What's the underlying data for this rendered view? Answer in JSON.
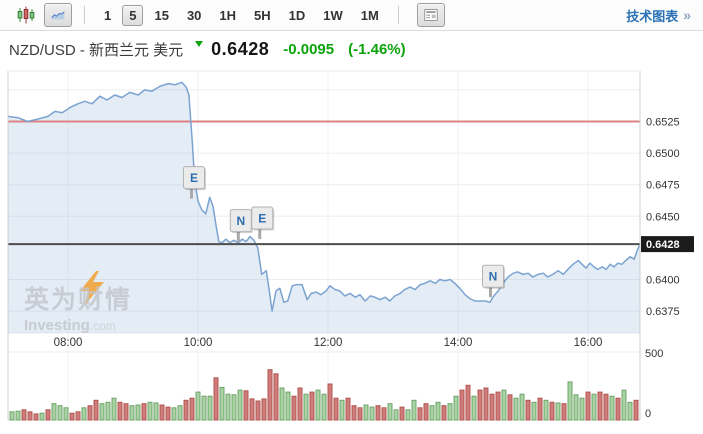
{
  "toolbar": {
    "timeframes": [
      "1",
      "5",
      "15",
      "30",
      "1H",
      "5H",
      "1D",
      "1W",
      "1M"
    ],
    "active_timeframe": "5",
    "tech_chart_label": "技术图表",
    "tech_chart_arrows": "»",
    "link_color": "#2a72b5"
  },
  "header": {
    "symbol": "NZD/USD - 新西兰元 美元",
    "price": "0.6428",
    "change": "-0.0095",
    "change_pct": "(-1.46%)",
    "change_color": "#0ca30c"
  },
  "watermark": {
    "cn": "英为财情",
    "brand": "Investing",
    "tld": ".com"
  },
  "chart_data": {
    "type": "line",
    "symbol": "NZD/USD",
    "interval_minutes": 5,
    "title": "NZD/USD 5-minute chart with volume",
    "x_axis": {
      "labels": [
        "08:00",
        "10:00",
        "12:00",
        "14:00",
        "16:00"
      ],
      "hours": [
        8,
        10,
        12,
        14,
        16
      ],
      "range_hours": [
        7.08,
        16.8
      ]
    },
    "y_axis": {
      "tick_values": [
        0.6525,
        0.65,
        0.6475,
        0.645,
        0.64,
        0.6375
      ],
      "grid_values": [
        0.655,
        0.65,
        0.6475,
        0.645,
        0.64,
        0.6375
      ],
      "range": [
        0.6368,
        0.6567
      ]
    },
    "grid": true,
    "legend": "none",
    "last_price": 0.6428,
    "resistance_line": 0.6525,
    "annotations": [
      {
        "label": "E",
        "hour": 9.9,
        "price": 0.6464
      },
      {
        "label": "N",
        "hour": 10.62,
        "price": 0.643
      },
      {
        "label": "E",
        "hour": 10.95,
        "price": 0.6432
      },
      {
        "label": "N",
        "hour": 14.5,
        "price": 0.6386
      }
    ],
    "price_series": [
      [
        7.08,
        0.6529
      ],
      [
        7.23,
        0.6528
      ],
      [
        7.38,
        0.6525
      ],
      [
        7.54,
        0.6527
      ],
      [
        7.69,
        0.6529
      ],
      [
        7.8,
        0.6533
      ],
      [
        7.91,
        0.6532
      ],
      [
        8.03,
        0.6536
      ],
      [
        8.15,
        0.6539
      ],
      [
        8.26,
        0.6541
      ],
      [
        8.37,
        0.6539
      ],
      [
        8.49,
        0.6545
      ],
      [
        8.6,
        0.6542
      ],
      [
        8.72,
        0.6546
      ],
      [
        8.83,
        0.6544
      ],
      [
        8.95,
        0.6548
      ],
      [
        9.08,
        0.6546
      ],
      [
        9.18,
        0.655
      ],
      [
        9.29,
        0.6549
      ],
      [
        9.42,
        0.6553
      ],
      [
        9.54,
        0.6555
      ],
      [
        9.65,
        0.6554
      ],
      [
        9.75,
        0.6556
      ],
      [
        9.82,
        0.6552
      ],
      [
        9.86,
        0.6546
      ],
      [
        9.91,
        0.651
      ],
      [
        9.95,
        0.6478
      ],
      [
        10.0,
        0.6462
      ],
      [
        10.06,
        0.6455
      ],
      [
        10.12,
        0.6452
      ],
      [
        10.18,
        0.6465
      ],
      [
        10.23,
        0.6458
      ],
      [
        10.28,
        0.6442
      ],
      [
        10.32,
        0.643
      ],
      [
        10.37,
        0.6429
      ],
      [
        10.43,
        0.6432
      ],
      [
        10.49,
        0.6429
      ],
      [
        10.55,
        0.6431
      ],
      [
        10.62,
        0.6429
      ],
      [
        10.68,
        0.6432
      ],
      [
        10.74,
        0.643
      ],
      [
        10.8,
        0.6434
      ],
      [
        10.86,
        0.6431
      ],
      [
        10.92,
        0.6425
      ],
      [
        10.98,
        0.6404
      ],
      [
        11.05,
        0.6407
      ],
      [
        11.09,
        0.6393
      ],
      [
        11.14,
        0.6375
      ],
      [
        11.2,
        0.6391
      ],
      [
        11.26,
        0.6393
      ],
      [
        11.32,
        0.6382
      ],
      [
        11.38,
        0.6383
      ],
      [
        11.45,
        0.6395
      ],
      [
        11.52,
        0.6396
      ],
      [
        11.6,
        0.6396
      ],
      [
        11.68,
        0.6384
      ],
      [
        11.74,
        0.6389
      ],
      [
        11.82,
        0.639
      ],
      [
        11.89,
        0.6388
      ],
      [
        11.97,
        0.6391
      ],
      [
        12.03,
        0.6395
      ],
      [
        12.11,
        0.6392
      ],
      [
        12.18,
        0.6391
      ],
      [
        12.26,
        0.6387
      ],
      [
        12.34,
        0.6389
      ],
      [
        12.42,
        0.6386
      ],
      [
        12.49,
        0.6388
      ],
      [
        12.57,
        0.6383
      ],
      [
        12.65,
        0.6387
      ],
      [
        12.72,
        0.6386
      ],
      [
        12.8,
        0.6384
      ],
      [
        12.88,
        0.6386
      ],
      [
        12.95,
        0.6383
      ],
      [
        13.03,
        0.6387
      ],
      [
        13.11,
        0.6389
      ],
      [
        13.18,
        0.6392
      ],
      [
        13.26,
        0.6394
      ],
      [
        13.34,
        0.6392
      ],
      [
        13.42,
        0.6396
      ],
      [
        13.49,
        0.6397
      ],
      [
        13.57,
        0.6399
      ],
      [
        13.65,
        0.6397
      ],
      [
        13.72,
        0.64
      ],
      [
        13.8,
        0.6399
      ],
      [
        13.88,
        0.64
      ],
      [
        13.95,
        0.6397
      ],
      [
        14.03,
        0.6393
      ],
      [
        14.11,
        0.6388
      ],
      [
        14.18,
        0.6385
      ],
      [
        14.26,
        0.6383
      ],
      [
        14.34,
        0.6383
      ],
      [
        14.42,
        0.6383
      ],
      [
        14.49,
        0.6382
      ],
      [
        14.55,
        0.6387
      ],
      [
        14.62,
        0.6391
      ],
      [
        14.69,
        0.6397
      ],
      [
        14.77,
        0.6402
      ],
      [
        14.85,
        0.6405
      ],
      [
        14.92,
        0.6406
      ],
      [
        15.0,
        0.6404
      ],
      [
        15.08,
        0.6405
      ],
      [
        15.15,
        0.6402
      ],
      [
        15.23,
        0.6404
      ],
      [
        15.31,
        0.6405
      ],
      [
        15.38,
        0.6402
      ],
      [
        15.46,
        0.6404
      ],
      [
        15.54,
        0.6407
      ],
      [
        15.62,
        0.6404
      ],
      [
        15.69,
        0.6408
      ],
      [
        15.77,
        0.6412
      ],
      [
        15.85,
        0.6415
      ],
      [
        15.91,
        0.6412
      ],
      [
        15.97,
        0.6409
      ],
      [
        16.03,
        0.6413
      ],
      [
        16.09,
        0.641
      ],
      [
        16.15,
        0.6408
      ],
      [
        16.22,
        0.641
      ],
      [
        16.28,
        0.6408
      ],
      [
        16.34,
        0.6412
      ],
      [
        16.4,
        0.641
      ],
      [
        16.46,
        0.6413
      ],
      [
        16.52,
        0.6412
      ],
      [
        16.58,
        0.6415
      ],
      [
        16.65,
        0.6418
      ],
      [
        16.71,
        0.6416
      ],
      [
        16.75,
        0.6422
      ],
      [
        16.8,
        0.6428
      ]
    ],
    "volume": {
      "ylim": [
        0,
        500
      ],
      "ticks": [
        500,
        0
      ],
      "bars": [
        [
          60,
          1
        ],
        [
          65,
          1
        ],
        [
          75,
          0
        ],
        [
          60,
          0
        ],
        [
          45,
          0
        ],
        [
          50,
          1
        ],
        [
          75,
          0
        ],
        [
          120,
          1
        ],
        [
          105,
          1
        ],
        [
          90,
          1
        ],
        [
          50,
          0
        ],
        [
          60,
          0
        ],
        [
          90,
          1
        ],
        [
          105,
          0
        ],
        [
          145,
          0
        ],
        [
          120,
          1
        ],
        [
          130,
          1
        ],
        [
          160,
          1
        ],
        [
          130,
          0
        ],
        [
          120,
          0
        ],
        [
          105,
          1
        ],
        [
          110,
          1
        ],
        [
          120,
          0
        ],
        [
          130,
          1
        ],
        [
          125,
          1
        ],
        [
          110,
          0
        ],
        [
          95,
          0
        ],
        [
          90,
          1
        ],
        [
          105,
          1
        ],
        [
          145,
          0
        ],
        [
          160,
          0
        ],
        [
          205,
          1
        ],
        [
          175,
          1
        ],
        [
          175,
          1
        ],
        [
          310,
          0
        ],
        [
          240,
          1
        ],
        [
          190,
          1
        ],
        [
          185,
          1
        ],
        [
          220,
          1
        ],
        [
          215,
          0
        ],
        [
          155,
          0
        ],
        [
          140,
          0
        ],
        [
          155,
          0
        ],
        [
          370,
          0
        ],
        [
          340,
          0
        ],
        [
          235,
          1
        ],
        [
          205,
          1
        ],
        [
          175,
          0
        ],
        [
          235,
          0
        ],
        [
          190,
          1
        ],
        [
          205,
          0
        ],
        [
          220,
          1
        ],
        [
          190,
          1
        ],
        [
          265,
          0
        ],
        [
          160,
          0
        ],
        [
          145,
          1
        ],
        [
          160,
          0
        ],
        [
          105,
          0
        ],
        [
          90,
          0
        ],
        [
          110,
          1
        ],
        [
          95,
          1
        ],
        [
          105,
          0
        ],
        [
          90,
          0
        ],
        [
          120,
          1
        ],
        [
          75,
          1
        ],
        [
          95,
          0
        ],
        [
          75,
          1
        ],
        [
          145,
          1
        ],
        [
          90,
          0
        ],
        [
          120,
          0
        ],
        [
          105,
          1
        ],
        [
          130,
          1
        ],
        [
          105,
          0
        ],
        [
          120,
          1
        ],
        [
          175,
          1
        ],
        [
          220,
          0
        ],
        [
          255,
          0
        ],
        [
          175,
          1
        ],
        [
          220,
          0
        ],
        [
          235,
          0
        ],
        [
          190,
          0
        ],
        [
          205,
          0
        ],
        [
          220,
          1
        ],
        [
          185,
          0
        ],
        [
          160,
          1
        ],
        [
          190,
          1
        ],
        [
          145,
          0
        ],
        [
          130,
          1
        ],
        [
          160,
          0
        ],
        [
          145,
          1
        ],
        [
          130,
          0
        ],
        [
          125,
          1
        ],
        [
          120,
          0
        ],
        [
          280,
          1
        ],
        [
          185,
          1
        ],
        [
          160,
          1
        ],
        [
          205,
          0
        ],
        [
          190,
          1
        ],
        [
          205,
          0
        ],
        [
          190,
          0
        ],
        [
          175,
          1
        ],
        [
          160,
          0
        ],
        [
          220,
          1
        ],
        [
          130,
          1
        ],
        [
          145,
          0
        ]
      ]
    },
    "colors": {
      "line": "#7ba3d0",
      "fill": "rgba(148,178,215,0.25)",
      "resistance": "#dd8383",
      "last_price_line": "#4d4d4d",
      "badge_bg": "#1b1b1b",
      "badge_text": "#ffffff",
      "vol_up_fill": "#a9d3a4",
      "vol_up_stroke": "#6fa468",
      "vol_down_fill": "#cf7d7a",
      "vol_down_stroke": "#b25551",
      "grid": "#ededf1",
      "vgrid": "#f2f2f5",
      "border": "#cccccc",
      "axis_text": "#333333",
      "flag_letter": "#2f6db0"
    }
  }
}
